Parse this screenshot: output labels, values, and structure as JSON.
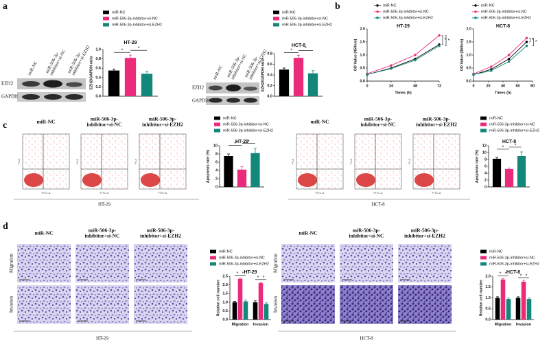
{
  "panel_labels": [
    "a",
    "b",
    "c",
    "d"
  ],
  "blots": [
    {
      "lanes": [
        [
          "miR-NC"
        ],
        [
          "miR-506-3p-",
          "inhibitor+si-NC"
        ],
        [
          "miR-506-3p-",
          "inhibitor+si-EZH2"
        ]
      ],
      "rows": [
        "EZH2",
        "GAPDH"
      ]
    },
    {
      "lanes": [
        [
          "miR-NC"
        ],
        [
          "miR-506-3p-",
          "inhibitor+si-NC"
        ],
        [
          "miR-506-3p-",
          "inhibitor+si-EZH2"
        ]
      ],
      "rows": [
        "EZH2",
        "GAPDH"
      ]
    }
  ],
  "flow": {
    "columns": [
      [
        "miR-NC"
      ],
      [
        "miR-506-3p-",
        "inhibitor+si-NC"
      ],
      [
        "miR-506-3p-",
        "inhibitor+si-EZH2"
      ]
    ],
    "cell_lines": [
      "HT-29",
      "HCT-8"
    ],
    "x_label": "FITC-A",
    "y_label": "PI-A"
  },
  "micro": {
    "columns": [
      [
        "miR-NC"
      ],
      [
        "miR-506-3p-",
        "inhibitor+si-NC"
      ],
      [
        "miR-506-3p-",
        "inhibitor+si-EZH2"
      ]
    ],
    "rows": [
      "Migration",
      "Invasion"
    ],
    "cell_lines": [
      "HT-29",
      "HCT-8"
    ]
  },
  "chart_data": [
    {
      "type": "bar",
      "title": "HT-29",
      "ylabel": "EZH2/GAPDH ratio",
      "series": [
        {
          "name": "miR-NC",
          "color": "#000000",
          "values": [
            0.55
          ],
          "errors": [
            0.03
          ]
        },
        {
          "name": "miR-506-3p-inhibitor+si-NC",
          "color": "#ec2a7a",
          "values": [
            0.82
          ],
          "errors": [
            0.06
          ]
        },
        {
          "name": "miR-506-3p-inhibitor+si-EZH2",
          "color": "#13877a",
          "values": [
            0.48
          ],
          "errors": [
            0.05
          ]
        }
      ],
      "ylim": [
        0,
        1
      ],
      "yticks": [
        {
          "value": 0,
          "label": "0.0"
        },
        0.2,
        0.4,
        0.6,
        0.8,
        {
          "value": 1,
          "label": "1.0"
        }
      ],
      "annotations": [
        "*",
        "*"
      ]
    },
    {
      "type": "bar",
      "title": "HCT-8",
      "ylabel": "EZH2/GAPDH ratio",
      "series": [
        {
          "name": "miR-NC",
          "color": "#000000",
          "values": [
            0.5
          ],
          "errors": [
            0.03
          ]
        },
        {
          "name": "miR-506-3p-inhibitor+si-NC",
          "color": "#ec2a7a",
          "values": [
            0.72
          ],
          "errors": [
            0.05
          ]
        },
        {
          "name": "miR-506-3p-inhibitor+si-EZH2",
          "color": "#13877a",
          "values": [
            0.43
          ],
          "errors": [
            0.05
          ]
        }
      ],
      "ylim": [
        0,
        0.8
      ],
      "yticks": [
        {
          "value": 0,
          "label": "0.0"
        },
        0.2,
        0.4,
        0.6,
        0.8
      ],
      "annotations": [
        "*",
        "*"
      ]
    },
    {
      "type": "line",
      "title": "HT-29",
      "xlabel": "Times (h)",
      "ylabel": "OD Value (450nm)",
      "x": [
        0,
        24,
        48,
        72
      ],
      "series": [
        {
          "name": "miR-NC",
          "color": "#000000",
          "values": [
            0.25,
            0.5,
            0.85,
            1.4
          ]
        },
        {
          "name": "miR-506-3p-inhibitor+si-NC",
          "color": "#ec2a7a",
          "values": [
            0.28,
            0.6,
            1.0,
            1.75
          ]
        },
        {
          "name": "miR-506-3p-inhibitor+si-EZH2",
          "color": "#13877a",
          "values": [
            0.25,
            0.48,
            0.8,
            1.35
          ]
        }
      ],
      "xlim": [
        0,
        72
      ],
      "xticks": [
        0,
        24,
        48,
        72
      ],
      "ylim": [
        0,
        2
      ],
      "yticks": [
        {
          "value": 0,
          "label": "0.0"
        },
        0.5,
        {
          "value": 1,
          "label": "1.0"
        },
        1.5,
        {
          "value": 2,
          "label": "2.0"
        }
      ],
      "annotations": [
        "*",
        "*"
      ]
    },
    {
      "type": "line",
      "title": "HCT-8",
      "xlabel": "Times (h)",
      "ylabel": "OD Value (450nm)",
      "x": [
        0,
        24,
        48,
        72
      ],
      "series": [
        {
          "name": "miR-NC",
          "color": "#000000",
          "values": [
            0.25,
            0.45,
            0.85,
            1.5
          ]
        },
        {
          "name": "miR-506-3p-inhibitor+si-NC",
          "color": "#ec2a7a",
          "values": [
            0.28,
            0.55,
            1.0,
            1.65
          ]
        },
        {
          "name": "miR-506-3p-inhibitor+si-EZH2",
          "color": "#13877a",
          "values": [
            0.25,
            0.4,
            0.75,
            1.35
          ]
        }
      ],
      "xlim": [
        0,
        80
      ],
      "xticks": [
        0,
        20,
        40,
        60,
        80
      ],
      "ylim": [
        0,
        2
      ],
      "yticks": [
        {
          "value": 0,
          "label": "0.0"
        },
        0.5,
        {
          "value": 1,
          "label": "1.0"
        },
        1.5,
        {
          "value": 2,
          "label": "2.0"
        }
      ],
      "annotations": [
        "*",
        "*"
      ]
    },
    {
      "type": "bar",
      "title": "HT-29",
      "ylabel": "Apoptosis rate (%)",
      "series": [
        {
          "name": "miR-NC",
          "color": "#000000",
          "values": [
            7.5
          ],
          "errors": [
            0.5
          ]
        },
        {
          "name": "miR-506-3p-inhibitor+si-NC",
          "color": "#ec2a7a",
          "values": [
            4.2
          ],
          "errors": [
            0.7
          ]
        },
        {
          "name": "miR-506-3p-inhibitor+si-EZH2",
          "color": "#13877a",
          "values": [
            8.2
          ],
          "errors": [
            1.2
          ]
        }
      ],
      "ylim": [
        0,
        10
      ],
      "yticks": [
        0,
        2,
        4,
        6,
        8,
        10
      ],
      "annotations": [
        "*",
        "*"
      ]
    },
    {
      "type": "bar",
      "title": "HCT-8",
      "ylabel": "Apoptosis rate (%)",
      "series": [
        {
          "name": "miR-NC",
          "color": "#000000",
          "values": [
            8.2
          ],
          "errors": [
            0.4
          ]
        },
        {
          "name": "miR-506-3p-inhibitor+si-NC",
          "color": "#ec2a7a",
          "values": [
            5.2
          ],
          "errors": [
            0.3
          ]
        },
        {
          "name": "miR-506-3p-inhibitor+si-EZH2",
          "color": "#13877a",
          "values": [
            9.0
          ],
          "errors": [
            1.2
          ]
        }
      ],
      "ylim": [
        0,
        12
      ],
      "yticks": [
        0,
        2,
        4,
        6,
        8,
        10,
        12
      ],
      "annotations": [
        "*",
        "*"
      ]
    },
    {
      "type": "bar",
      "title": "HT-29",
      "ylabel": "Relative cell number",
      "categories": [
        "Migration",
        "Invasion"
      ],
      "series": [
        {
          "name": "miR-NC",
          "color": "#000000",
          "values": [
            1.0,
            1.0
          ],
          "errors": [
            0.05,
            0.08
          ]
        },
        {
          "name": "miR-506-3p-inhibitor+si-NC",
          "color": "#ec2a7a",
          "values": [
            2.35,
            2.1
          ],
          "errors": [
            0.05,
            0.05
          ]
        },
        {
          "name": "miR-506-3p-inhibitor+si-EZH2",
          "color": "#13877a",
          "values": [
            1.05,
            0.9
          ],
          "errors": [
            0.08,
            0.06
          ]
        }
      ],
      "ylim": [
        0,
        2.5
      ],
      "yticks": [
        {
          "value": 0,
          "label": "0.0"
        },
        0.5,
        {
          "value": 1,
          "label": "1.0"
        },
        1.5,
        {
          "value": 2,
          "label": "2.0"
        },
        2.5
      ],
      "annotations": [
        "*",
        "*",
        "*",
        "*"
      ]
    },
    {
      "type": "bar",
      "title": "HCT-8",
      "ylabel": "Relative cell number",
      "categories": [
        "Migration",
        "Invasion"
      ],
      "series": [
        {
          "name": "miR-NC",
          "color": "#000000",
          "values": [
            1.0,
            1.0
          ],
          "errors": [
            0.05,
            0.05
          ]
        },
        {
          "name": "miR-506-3p-inhibitor+si-NC",
          "color": "#ec2a7a",
          "values": [
            1.85,
            1.75
          ],
          "errors": [
            0.05,
            0.06
          ]
        },
        {
          "name": "miR-506-3p-inhibitor+si-EZH2",
          "color": "#13877a",
          "values": [
            0.95,
            0.95
          ],
          "errors": [
            0.05,
            0.05
          ]
        }
      ],
      "ylim": [
        0,
        2
      ],
      "yticks": [
        {
          "value": 0,
          "label": "0.0"
        },
        0.5,
        {
          "value": 1,
          "label": "1.0"
        },
        1.5,
        {
          "value": 2,
          "label": "2.0"
        }
      ],
      "annotations": [
        "*",
        "*",
        "*",
        "*"
      ]
    }
  ]
}
